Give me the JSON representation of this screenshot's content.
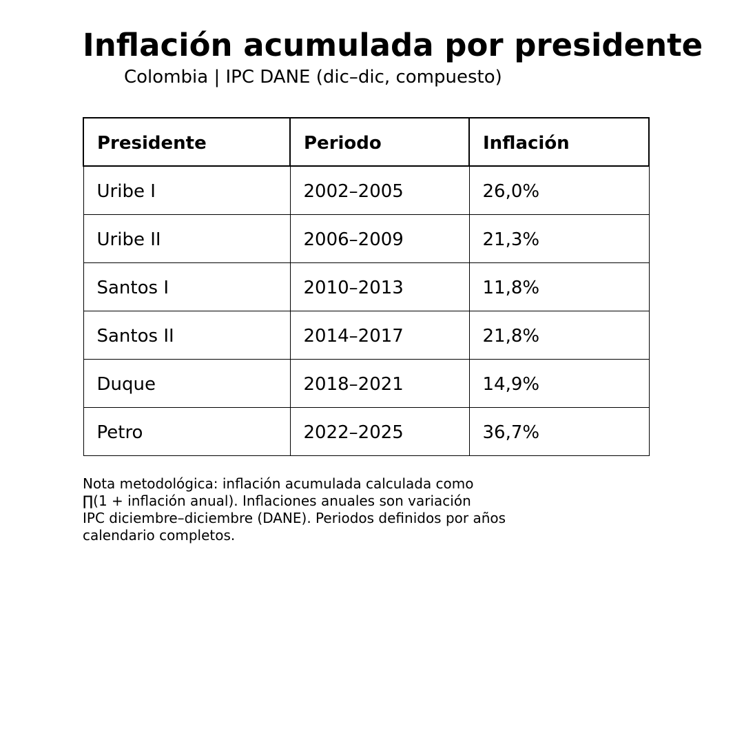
{
  "title": "Inflación acumulada por presidente",
  "subtitle": "Colombia | IPC DANE (dic–dic, compuesto)",
  "note": "Nota metodológica: inflación acumulada calculada como\n∏(1 + inflación anual). Inflaciones anuales son variación\nIPC diciembre–diciembre (DANE). Periodos definidos por años\ncalendario completos.",
  "chart_data": {
    "type": "table",
    "title": "Inflación acumulada por presidente",
    "subtitle": "Colombia | IPC DANE (dic–dic, compuesto)",
    "columns": [
      "Presidente",
      "Periodo",
      "Inflación"
    ],
    "rows": [
      [
        "Uribe I",
        "2002–2005",
        "26,0%"
      ],
      [
        "Uribe II",
        "2006–2009",
        "21,3%"
      ],
      [
        "Santos I",
        "2010–2013",
        "11,8%"
      ],
      [
        "Santos II",
        "2014–2017",
        "21,8%"
      ],
      [
        "Duque",
        "2018–2021",
        "14,9%"
      ],
      [
        "Petro",
        "2022–2025",
        "36,7%"
      ]
    ],
    "values": [
      26.0,
      21.3,
      11.8,
      21.8,
      14.9,
      36.7
    ]
  }
}
